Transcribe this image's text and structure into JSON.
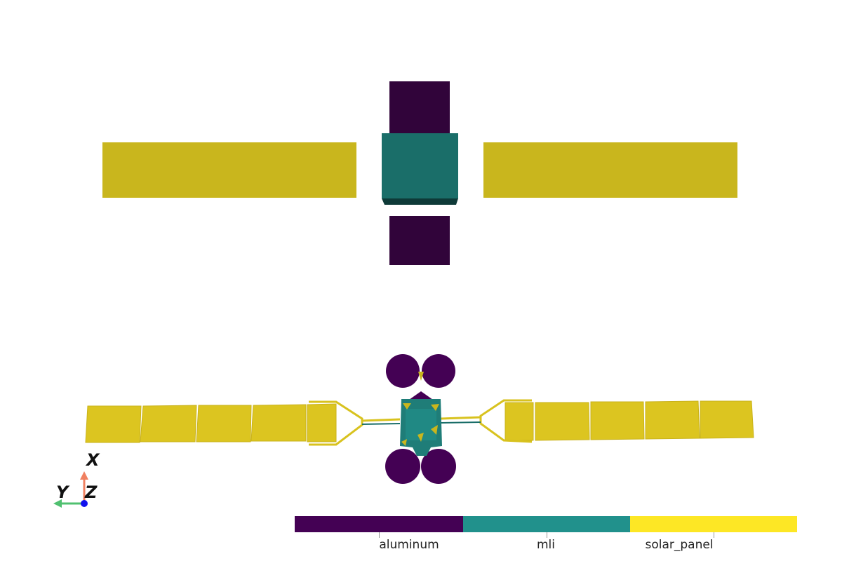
{
  "colors": {
    "aluminum": "#440154",
    "mli": "#21918c",
    "solar_panel": "#fde725",
    "aluminum_shaded": "#31043a",
    "mli_shaded": "#1a6e69",
    "mli_dark": "#0e3a38",
    "solar_panel_shaded": "#c9b61d",
    "solar_panel_lit": "#dcc520",
    "axis_x": "#f08060",
    "axis_y": "#50c070",
    "axis_z": "#1010ee"
  },
  "colorbar": {
    "categories": [
      "aluminum",
      "mli",
      "solar_panel"
    ]
  },
  "orientation_axes": {
    "x_label": "X",
    "y_label": "Y",
    "z_label": "Z"
  },
  "views": [
    {
      "name": "top-view"
    },
    {
      "name": "front-view"
    }
  ]
}
